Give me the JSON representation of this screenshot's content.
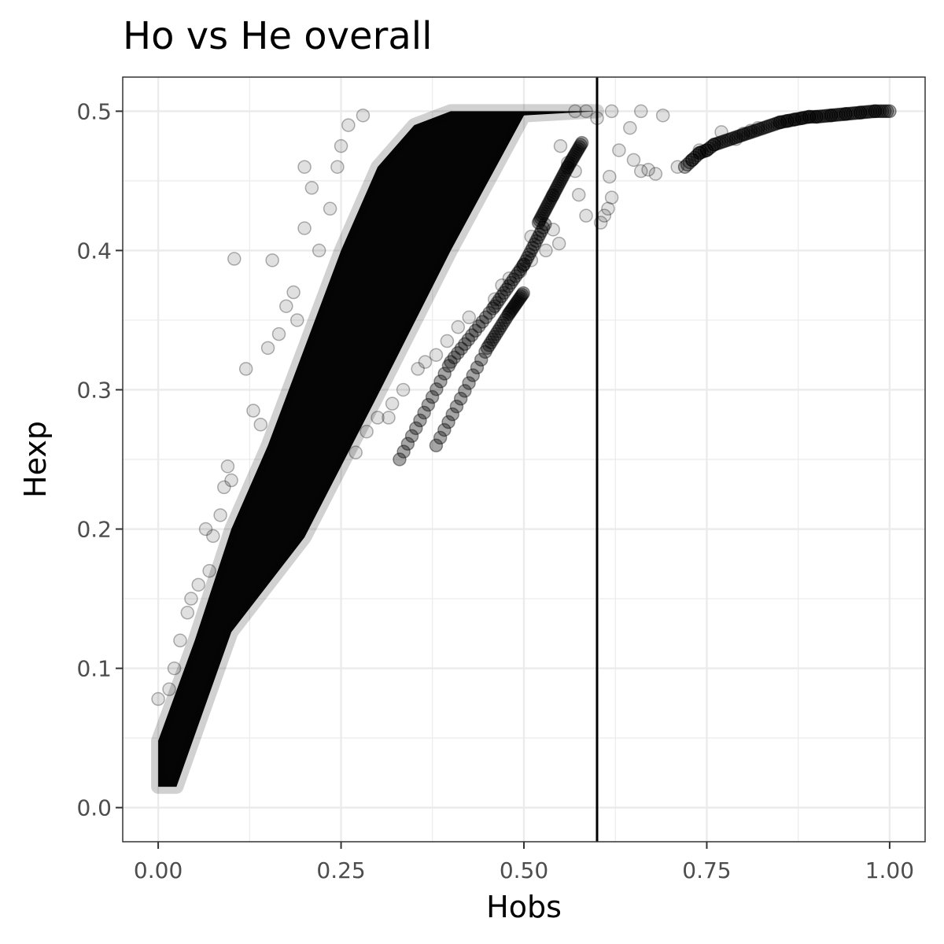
{
  "chart_data": {
    "type": "scatter",
    "title": "Ho vs He overall",
    "xlabel": "Hobs",
    "ylabel": "Hexp",
    "xlim": [
      -0.0485,
      1.0485
    ],
    "ylim": [
      -0.0245,
      0.5245
    ],
    "x_ticks": [
      0.0,
      0.25,
      0.5,
      0.75,
      1.0
    ],
    "x_tick_labels": [
      "0.00",
      "0.25",
      "0.50",
      "0.75",
      "1.00"
    ],
    "y_ticks": [
      0.0,
      0.1,
      0.2,
      0.3,
      0.4,
      0.5
    ],
    "y_tick_labels": [
      "0.0",
      "0.1",
      "0.2",
      "0.3",
      "0.4",
      "0.5"
    ],
    "grid": true,
    "vline_x": 0.6,
    "point_color": "#000000",
    "point_alpha": 0.12,
    "series": [
      {
        "sparse_points": [
          {
            "x": 0.104,
            "y": 0.394
          },
          {
            "x": 0.156,
            "y": 0.393
          },
          {
            "x": 0.2,
            "y": 0.416
          },
          {
            "x": 0.12,
            "y": 0.315
          },
          {
            "x": 0.13,
            "y": 0.285
          },
          {
            "x": 0.14,
            "y": 0.275
          },
          {
            "x": 0.085,
            "y": 0.21
          },
          {
            "x": 0.075,
            "y": 0.195
          },
          {
            "x": 0.07,
            "y": 0.17
          },
          {
            "x": 0.04,
            "y": 0.14
          },
          {
            "x": 0.045,
            "y": 0.15
          },
          {
            "x": 0.055,
            "y": 0.16
          },
          {
            "x": 0.03,
            "y": 0.12
          },
          {
            "x": 0.022,
            "y": 0.1
          },
          {
            "x": 0.015,
            "y": 0.085
          },
          {
            "x": 0.0,
            "y": 0.078
          },
          {
            "x": 0.2,
            "y": 0.46
          },
          {
            "x": 0.245,
            "y": 0.46
          },
          {
            "x": 0.25,
            "y": 0.475
          },
          {
            "x": 0.21,
            "y": 0.445
          },
          {
            "x": 0.185,
            "y": 0.37
          },
          {
            "x": 0.165,
            "y": 0.34
          },
          {
            "x": 0.15,
            "y": 0.33
          },
          {
            "x": 0.095,
            "y": 0.245
          },
          {
            "x": 0.09,
            "y": 0.23
          },
          {
            "x": 0.065,
            "y": 0.2
          },
          {
            "x": 0.1,
            "y": 0.235
          },
          {
            "x": 0.175,
            "y": 0.36
          },
          {
            "x": 0.19,
            "y": 0.35
          },
          {
            "x": 0.22,
            "y": 0.4
          },
          {
            "x": 0.235,
            "y": 0.43
          },
          {
            "x": 0.26,
            "y": 0.49
          },
          {
            "x": 0.28,
            "y": 0.497
          },
          {
            "x": 0.55,
            "y": 0.475
          },
          {
            "x": 0.56,
            "y": 0.463
          },
          {
            "x": 0.57,
            "y": 0.457
          },
          {
            "x": 0.575,
            "y": 0.44
          },
          {
            "x": 0.585,
            "y": 0.425
          },
          {
            "x": 0.548,
            "y": 0.405
          },
          {
            "x": 0.54,
            "y": 0.415
          },
          {
            "x": 0.53,
            "y": 0.4
          },
          {
            "x": 0.51,
            "y": 0.41
          },
          {
            "x": 0.585,
            "y": 0.5
          },
          {
            "x": 0.57,
            "y": 0.5
          },
          {
            "x": 0.6,
            "y": 0.495
          },
          {
            "x": 0.62,
            "y": 0.5
          },
          {
            "x": 0.66,
            "y": 0.5
          },
          {
            "x": 0.63,
            "y": 0.472
          },
          {
            "x": 0.617,
            "y": 0.453
          },
          {
            "x": 0.65,
            "y": 0.465
          },
          {
            "x": 0.69,
            "y": 0.497
          },
          {
            "x": 0.66,
            "y": 0.457
          },
          {
            "x": 0.645,
            "y": 0.488
          },
          {
            "x": 0.67,
            "y": 0.458
          },
          {
            "x": 0.68,
            "y": 0.455
          },
          {
            "x": 0.71,
            "y": 0.46
          },
          {
            "x": 0.61,
            "y": 0.425
          },
          {
            "x": 0.615,
            "y": 0.43
          },
          {
            "x": 0.62,
            "y": 0.438
          },
          {
            "x": 0.605,
            "y": 0.42
          },
          {
            "x": 0.74,
            "y": 0.472
          },
          {
            "x": 0.77,
            "y": 0.485
          },
          {
            "x": 0.79,
            "y": 0.48
          },
          {
            "x": 0.8,
            "y": 0.484
          },
          {
            "x": 0.81,
            "y": 0.486
          },
          {
            "x": 0.82,
            "y": 0.488
          },
          {
            "x": 0.335,
            "y": 0.3
          },
          {
            "x": 0.355,
            "y": 0.315
          },
          {
            "x": 0.365,
            "y": 0.32
          },
          {
            "x": 0.38,
            "y": 0.325
          },
          {
            "x": 0.395,
            "y": 0.335
          },
          {
            "x": 0.41,
            "y": 0.345
          },
          {
            "x": 0.425,
            "y": 0.352
          },
          {
            "x": 0.3,
            "y": 0.28
          },
          {
            "x": 0.315,
            "y": 0.28
          },
          {
            "x": 0.285,
            "y": 0.27
          },
          {
            "x": 0.27,
            "y": 0.255
          },
          {
            "x": 0.32,
            "y": 0.29
          },
          {
            "x": 0.46,
            "y": 0.365
          },
          {
            "x": 0.47,
            "y": 0.375
          },
          {
            "x": 0.48,
            "y": 0.38
          },
          {
            "x": 0.5,
            "y": 0.39
          },
          {
            "x": 0.51,
            "y": 0.393
          },
          {
            "x": 0.495,
            "y": 0.385
          }
        ],
        "dense_band": {
          "lower_edge": [
            [
              0.0,
              0.015
            ],
            [
              0.025,
              0.015
            ],
            [
              0.1,
              0.126
            ],
            [
              0.2,
              0.194
            ],
            [
              0.3,
              0.296
            ],
            [
              0.4,
              0.4
            ],
            [
              0.5,
              0.497
            ],
            [
              0.6,
              0.5
            ]
          ],
          "upper_edge": [
            [
              0.0,
              0.048
            ],
            [
              0.05,
              0.12
            ],
            [
              0.1,
              0.2
            ],
            [
              0.15,
              0.26
            ],
            [
              0.2,
              0.33
            ],
            [
              0.25,
              0.4
            ],
            [
              0.3,
              0.46
            ],
            [
              0.35,
              0.49
            ],
            [
              0.4,
              0.5
            ],
            [
              0.5,
              0.5
            ],
            [
              0.6,
              0.5
            ]
          ]
        },
        "secondary_arms": [
          [
            [
              0.33,
              0.25
            ],
            [
              0.4,
              0.32
            ],
            [
              0.46,
              0.36
            ],
            [
              0.5,
              0.39
            ],
            [
              0.53,
              0.42
            ]
          ],
          [
            [
              0.38,
              0.26
            ],
            [
              0.45,
              0.33
            ],
            [
              0.48,
              0.355
            ],
            [
              0.5,
              0.37
            ]
          ],
          [
            [
              0.52,
              0.42
            ],
            [
              0.54,
              0.44
            ],
            [
              0.56,
              0.46
            ],
            [
              0.58,
              0.478
            ]
          ]
        ],
        "right_branch": [
          [
            0.72,
            0.46
          ],
          [
            0.73,
            0.465
          ],
          [
            0.74,
            0.47
          ],
          [
            0.75,
            0.472
          ],
          [
            0.76,
            0.476
          ],
          [
            0.85,
            0.492
          ],
          [
            0.86,
            0.493
          ],
          [
            0.87,
            0.494
          ],
          [
            0.88,
            0.495
          ],
          [
            0.89,
            0.496
          ],
          [
            0.9,
            0.496
          ],
          [
            0.92,
            0.497
          ],
          [
            0.94,
            0.498
          ],
          [
            0.96,
            0.499
          ],
          [
            0.98,
            0.5
          ],
          [
            1.0,
            0.5
          ]
        ]
      }
    ]
  }
}
